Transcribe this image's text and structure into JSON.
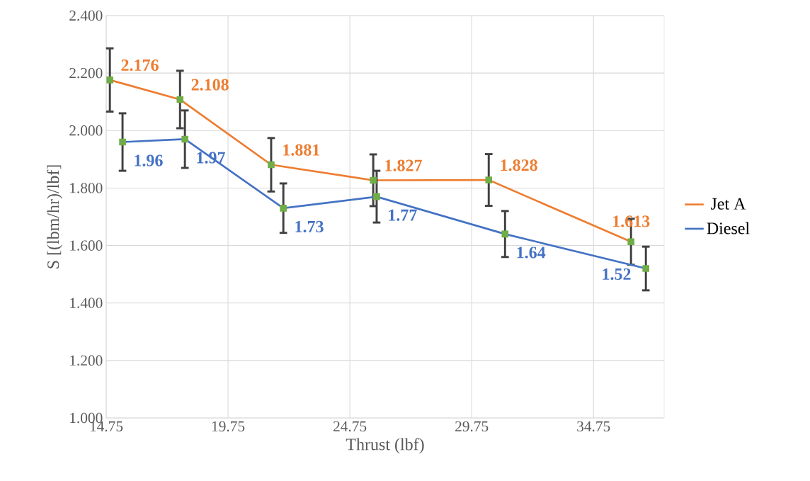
{
  "chart_data": {
    "type": "line",
    "xlabel": "Thrust (lbf)",
    "ylabel": "S [(lbm/hr)/lbf]",
    "xlim": [
      14.75,
      37.65
    ],
    "xticks": [
      14.75,
      19.75,
      24.75,
      29.75,
      34.75
    ],
    "ylim": [
      1.0,
      2.4
    ],
    "yticks": [
      {
        "value": 1.0,
        "label": "1.000"
      },
      {
        "value": 1.2,
        "label": "1.200"
      },
      {
        "value": 1.4,
        "label": "1.400"
      },
      {
        "value": 1.6,
        "label": "1.600"
      },
      {
        "value": 1.8,
        "label": "1.800"
      },
      {
        "value": 2.0,
        "label": "2.000"
      },
      {
        "value": 2.2,
        "label": "2.200"
      },
      {
        "value": 2.4,
        "label": "2.400"
      }
    ],
    "grid": true,
    "legend": "right",
    "marker": "square",
    "series": [
      {
        "name": "Jet A",
        "color": "#ed7d31",
        "x": [
          14.9,
          17.78,
          21.52,
          25.71,
          30.45,
          36.29
        ],
        "values": [
          2.176,
          2.108,
          1.881,
          1.827,
          1.828,
          1.613
        ],
        "errors": [
          0.11,
          0.1,
          0.093,
          0.09,
          0.09,
          0.08
        ],
        "value_labels": [
          "2.176",
          "2.108",
          "1.881",
          "1.827",
          "1.828",
          "1.613"
        ]
      },
      {
        "name": "Diesel",
        "color": "#4472c4",
        "x": [
          15.42,
          17.98,
          22.02,
          25.85,
          31.12,
          36.9
        ],
        "values": [
          1.96,
          1.97,
          1.73,
          1.77,
          1.64,
          1.52
        ],
        "errors": [
          0.1,
          0.1,
          0.086,
          0.09,
          0.08,
          0.076
        ],
        "value_labels": [
          "1.96",
          "1.97",
          "1.73",
          "1.77",
          "1.64",
          "1.52"
        ]
      }
    ]
  }
}
